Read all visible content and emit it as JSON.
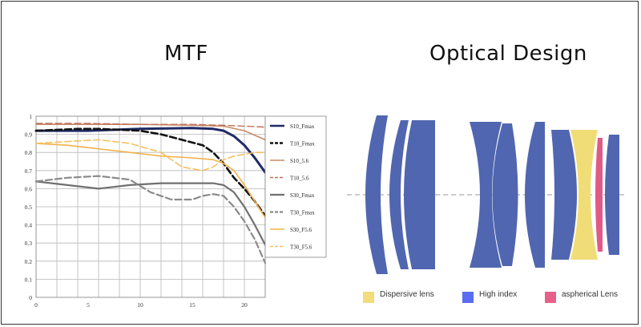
{
  "headings": {
    "mtf": "MTF",
    "optical": "Optical Design"
  },
  "chart_data": {
    "type": "line",
    "title": "MTF",
    "xlim": [
      0,
      22
    ],
    "ylim": [
      0,
      1
    ],
    "x_ticks": [
      0,
      5,
      10,
      15,
      20
    ],
    "y_ticks": [
      0,
      0.1,
      0.2,
      0.3,
      0.4,
      0.5,
      0.6,
      0.7,
      0.8,
      0.9,
      1
    ],
    "grid": true,
    "legend_position": "right",
    "series": [
      {
        "name": "S10_Fmax",
        "color": "#1f2a66",
        "dash": "solid",
        "width": 3,
        "x": [
          0,
          5,
          10,
          15,
          17,
          18,
          19,
          20,
          21,
          22
        ],
        "y": [
          0.92,
          0.92,
          0.93,
          0.935,
          0.93,
          0.92,
          0.89,
          0.84,
          0.77,
          0.69
        ]
      },
      {
        "name": "T10_Fmax",
        "color": "#111111",
        "dash": "dash",
        "width": 2.6,
        "x": [
          0,
          4,
          6,
          10,
          12,
          14,
          16,
          17,
          18,
          19,
          20,
          21,
          22
        ],
        "y": [
          0.92,
          0.93,
          0.93,
          0.92,
          0.9,
          0.87,
          0.84,
          0.8,
          0.74,
          0.66,
          0.6,
          0.53,
          0.45
        ]
      },
      {
        "name": "S10_5.6",
        "color": "#c98a66",
        "dash": "solid",
        "width": 1.6,
        "x": [
          0,
          5,
          10,
          15,
          18,
          20,
          22
        ],
        "y": [
          0.955,
          0.955,
          0.955,
          0.95,
          0.945,
          0.92,
          0.87
        ]
      },
      {
        "name": "T10_5.6",
        "color": "#c0705a",
        "dash": "dash",
        "width": 1.4,
        "x": [
          0,
          5,
          10,
          15,
          18,
          20,
          22
        ],
        "y": [
          0.96,
          0.96,
          0.955,
          0.955,
          0.95,
          0.945,
          0.94
        ]
      },
      {
        "name": "S30_Fmax",
        "color": "#707070",
        "dash": "solid",
        "width": 2.2,
        "x": [
          0,
          3,
          6,
          9,
          12,
          15,
          17,
          18,
          19,
          20,
          21,
          22
        ],
        "y": [
          0.64,
          0.62,
          0.6,
          0.62,
          0.63,
          0.63,
          0.63,
          0.62,
          0.58,
          0.5,
          0.4,
          0.29
        ]
      },
      {
        "name": "T30_Fmax",
        "color": "#8a8a8a",
        "dash": "dash",
        "width": 2.2,
        "x": [
          0,
          3,
          6,
          9,
          11,
          13,
          15,
          16,
          17,
          18,
          19,
          20,
          21,
          22
        ],
        "y": [
          0.64,
          0.66,
          0.67,
          0.65,
          0.58,
          0.54,
          0.54,
          0.56,
          0.57,
          0.56,
          0.5,
          0.42,
          0.32,
          0.19
        ]
      },
      {
        "name": "S30_F5.6",
        "color": "#f2b24a",
        "dash": "solid",
        "width": 1.6,
        "x": [
          0,
          3,
          6,
          9,
          12,
          15,
          17,
          18,
          19,
          20,
          21,
          22
        ],
        "y": [
          0.85,
          0.84,
          0.82,
          0.8,
          0.78,
          0.77,
          0.76,
          0.74,
          0.7,
          0.62,
          0.53,
          0.44
        ]
      },
      {
        "name": "T30_F5.6",
        "color": "#f5c060",
        "dash": "dash",
        "width": 1.6,
        "x": [
          0,
          3,
          6,
          9,
          12,
          14,
          16,
          17,
          18,
          19,
          20,
          21,
          22
        ],
        "y": [
          0.85,
          0.86,
          0.87,
          0.85,
          0.8,
          0.72,
          0.7,
          0.72,
          0.76,
          0.78,
          0.79,
          0.8,
          0.8
        ]
      }
    ]
  },
  "optical": {
    "legend": [
      {
        "label": "Dispersive lens",
        "color": "#f3dc7a"
      },
      {
        "label": "High index",
        "color": "#5a6cf2"
      },
      {
        "label": "aspherical Lens",
        "color": "#e8608a"
      }
    ],
    "colors": {
      "high_index": "#5166b0",
      "dispersive": "#f0dd78",
      "aspherical": "#e05a88",
      "axis": "#9a9a9a"
    }
  }
}
